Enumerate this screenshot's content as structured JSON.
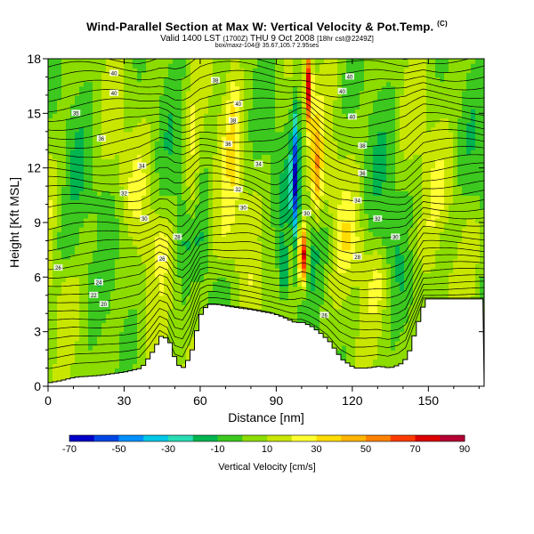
{
  "header": {
    "title": "Wind-Parallel Section at Max W: Vertical Velocity & Pot.Temp.",
    "title_unit": "(C)",
    "valid": "Valid 1400 LST",
    "valid_utc": "(1700Z)",
    "valid_date": "THU 9 Oct 2008",
    "valid_run": "[18hr cst@2249Z]",
    "location": "box/maxz-104@ 35.67,105.7 2.95ses"
  },
  "chart_data": {
    "type": "heatmap",
    "title": "Wind-Parallel Section at Max W: Vertical Velocity & Pot.Temp.",
    "xlabel": "Distance [nm]",
    "ylabel": "Height [Kft MSL]",
    "xlim": [
      0,
      172
    ],
    "ylim": [
      0,
      18
    ],
    "x_ticks": [
      0,
      30,
      60,
      90,
      120,
      150
    ],
    "x_tick_labels": [
      "0",
      "30",
      "60",
      "90",
      "120",
      "150"
    ],
    "y_ticks": [
      0,
      3,
      6,
      9,
      12,
      15,
      18
    ],
    "y_tick_labels": [
      "0",
      "3",
      "6",
      "9",
      "12",
      "15",
      "18"
    ],
    "colorbar": {
      "label": "Vertical Velocity [cm/s]",
      "ticks": [
        -70,
        -50,
        -30,
        -10,
        10,
        30,
        50,
        70,
        90
      ],
      "tick_labels": [
        "-70",
        "-50",
        "-30",
        "-10",
        "10",
        "30",
        "50",
        "70",
        "90"
      ],
      "colors": [
        "#0000c8",
        "#0046e6",
        "#0090ff",
        "#00c8e6",
        "#28dcb4",
        "#00b450",
        "#3cc81e",
        "#8cdc00",
        "#c8e600",
        "#ffff32",
        "#ffdc00",
        "#ffb400",
        "#ff8200",
        "#ff3c00",
        "#dc0000",
        "#b40032"
      ]
    },
    "terrain": {
      "x": [
        0,
        4,
        10,
        20,
        30,
        36,
        40,
        44,
        47,
        50,
        53,
        56,
        58,
        60,
        63,
        66,
        70,
        75,
        80,
        84,
        88,
        92,
        95,
        97,
        100,
        103,
        106,
        110,
        115,
        120,
        125,
        130,
        134,
        138,
        141,
        144,
        148,
        155,
        165,
        172
      ],
      "height": [
        0.2,
        0.3,
        0.5,
        0.6,
        0.8,
        1.0,
        1.8,
        2.8,
        2.5,
        1.2,
        1.0,
        2.0,
        3.2,
        4.2,
        4.5,
        4.5,
        4.4,
        4.3,
        4.2,
        4.1,
        4.0,
        3.8,
        3.6,
        3.5,
        3.5,
        3.3,
        3.0,
        2.5,
        1.5,
        1.0,
        1.0,
        1.1,
        1.0,
        1.2,
        1.6,
        3.0,
        4.8,
        4.8,
        4.8,
        4.8
      ]
    },
    "theta_contour_labels": [
      {
        "x": 26,
        "y": 17.2,
        "text": "40"
      },
      {
        "x": 26,
        "y": 16.1,
        "text": "40"
      },
      {
        "x": 11,
        "y": 15.0,
        "text": "35"
      },
      {
        "x": 21,
        "y": 13.6,
        "text": "36"
      },
      {
        "x": 37,
        "y": 12.1,
        "text": "34"
      },
      {
        "x": 30,
        "y": 10.6,
        "text": "32"
      },
      {
        "x": 38,
        "y": 9.2,
        "text": "30"
      },
      {
        "x": 51,
        "y": 8.2,
        "text": "28"
      },
      {
        "x": 45,
        "y": 7.0,
        "text": "26"
      },
      {
        "x": 4,
        "y": 6.5,
        "text": "26"
      },
      {
        "x": 20,
        "y": 5.7,
        "text": "24"
      },
      {
        "x": 18,
        "y": 5.0,
        "text": "22"
      },
      {
        "x": 22,
        "y": 4.5,
        "text": "20"
      },
      {
        "x": 66,
        "y": 16.8,
        "text": "38"
      },
      {
        "x": 75,
        "y": 15.5,
        "text": "40"
      },
      {
        "x": 73,
        "y": 14.6,
        "text": "38"
      },
      {
        "x": 71,
        "y": 13.3,
        "text": "36"
      },
      {
        "x": 83,
        "y": 12.2,
        "text": "34"
      },
      {
        "x": 75,
        "y": 10.8,
        "text": "32"
      },
      {
        "x": 77,
        "y": 9.8,
        "text": "30"
      },
      {
        "x": 102,
        "y": 9.5,
        "text": "30"
      },
      {
        "x": 119,
        "y": 17.0,
        "text": "40"
      },
      {
        "x": 116,
        "y": 16.2,
        "text": "40"
      },
      {
        "x": 120,
        "y": 14.8,
        "text": "40"
      },
      {
        "x": 124,
        "y": 13.2,
        "text": "38"
      },
      {
        "x": 124,
        "y": 11.7,
        "text": "36"
      },
      {
        "x": 122,
        "y": 10.2,
        "text": "34"
      },
      {
        "x": 130,
        "y": 9.2,
        "text": "32"
      },
      {
        "x": 137,
        "y": 8.2,
        "text": "30"
      },
      {
        "x": 122,
        "y": 7.1,
        "text": "28"
      },
      {
        "x": 109,
        "y": 3.9,
        "text": "26"
      }
    ]
  }
}
